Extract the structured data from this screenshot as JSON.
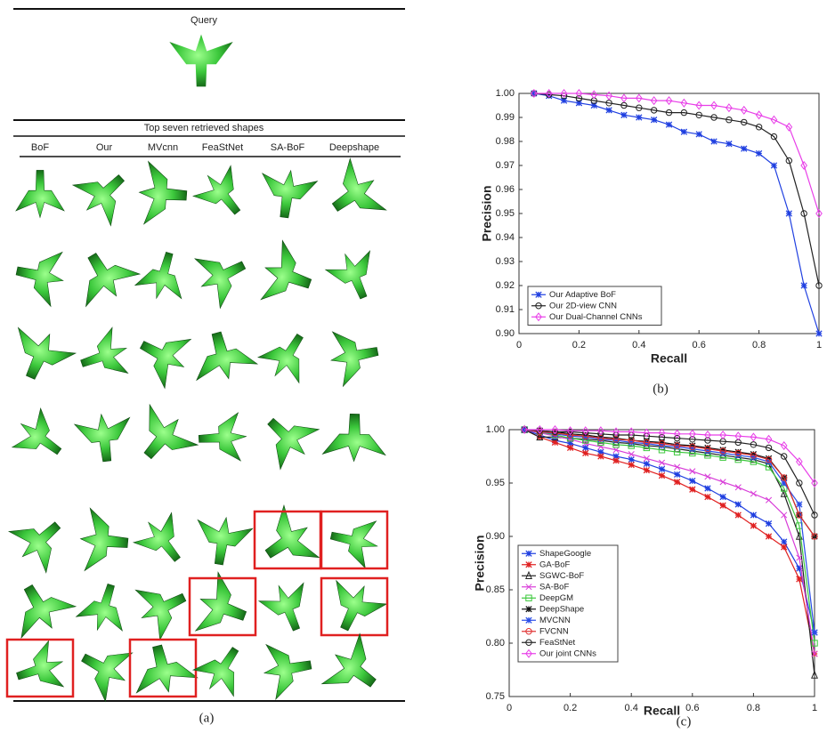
{
  "panel_a": {
    "query_label": "Query",
    "retrieved_label": "Top seven retrieved shapes",
    "methods": [
      "BoF",
      "Our",
      "MVcnn",
      "FeaStNet",
      "SA-BoF",
      "Deepshape"
    ],
    "caption": "(a)"
  },
  "chart_data": [
    {
      "type": "line",
      "caption": "(b)",
      "xlabel": "Recall",
      "ylabel": "Precision",
      "legend": "lower left",
      "xlim": [
        0,
        1
      ],
      "xticks": [
        0,
        0.2,
        0.4,
        0.6,
        0.8,
        1
      ],
      "ylim": [
        0.9,
        1.0
      ],
      "yticks": [
        {
          "value": 0.9,
          "label": "0.90"
        },
        0.91,
        0.92,
        0.93,
        0.94,
        0.95,
        0.96,
        0.97,
        0.98,
        0.99,
        {
          "value": 1.0,
          "label": "1.00"
        }
      ],
      "x": [
        0.05,
        0.1,
        0.15,
        0.2,
        0.25,
        0.3,
        0.35,
        0.4,
        0.45,
        0.5,
        0.55,
        0.6,
        0.65,
        0.7,
        0.75,
        0.8,
        0.85,
        0.9,
        0.95,
        1
      ],
      "series": [
        {
          "name": "Our Adaptive BoF",
          "color": "#1f3fe0",
          "marker": "star",
          "values": [
            1.0,
            0.999,
            0.997,
            0.996,
            0.995,
            0.993,
            0.991,
            0.99,
            0.989,
            0.987,
            0.984,
            0.983,
            0.98,
            0.979,
            0.977,
            0.975,
            0.97,
            0.95,
            0.92,
            0.9
          ]
        },
        {
          "name": "Our 2D-view CNN",
          "color": "#222222",
          "marker": "circle",
          "values": [
            1.0,
            0.9995,
            0.999,
            0.998,
            0.997,
            0.996,
            0.995,
            0.994,
            0.993,
            0.992,
            0.992,
            0.991,
            0.99,
            0.989,
            0.988,
            0.986,
            0.982,
            0.972,
            0.95,
            0.92
          ]
        },
        {
          "name": "Our Dual-Channel CNNs",
          "color": "#e83ee8",
          "marker": "diamond",
          "values": [
            1.0,
            1.0,
            1.0,
            1.0,
            0.9995,
            0.999,
            0.998,
            0.998,
            0.997,
            0.997,
            0.996,
            0.995,
            0.995,
            0.994,
            0.993,
            0.991,
            0.989,
            0.986,
            0.97,
            0.95
          ]
        }
      ]
    },
    {
      "type": "line",
      "caption": "(c)",
      "xlabel": "Recall",
      "ylabel": "Precision",
      "legend": "lower left",
      "xlim": [
        0,
        1
      ],
      "xticks": [
        0,
        0.2,
        0.4,
        0.6,
        0.8,
        1
      ],
      "ylim": [
        0.75,
        1.0
      ],
      "yticks": [
        0.75,
        {
          "value": 0.8,
          "label": "0.80"
        },
        0.85,
        {
          "value": 0.9,
          "label": "0.90"
        },
        0.95,
        {
          "value": 1.0,
          "label": "1.00"
        }
      ],
      "x": [
        0.05,
        0.1,
        0.15,
        0.2,
        0.25,
        0.3,
        0.35,
        0.4,
        0.45,
        0.5,
        0.55,
        0.6,
        0.65,
        0.7,
        0.75,
        0.8,
        0.85,
        0.9,
        0.95,
        1
      ],
      "series": [
        {
          "name": "ShapeGoogle",
          "color": "#1f3fe0",
          "marker": "star",
          "values": [
            1.0,
            0.995,
            0.99,
            0.987,
            0.983,
            0.979,
            0.975,
            0.972,
            0.968,
            0.963,
            0.958,
            0.952,
            0.945,
            0.937,
            0.93,
            0.92,
            0.912,
            0.895,
            0.87,
            0.81
          ]
        },
        {
          "name": "GA-BoF",
          "color": "#e02020",
          "marker": "star",
          "values": [
            1.0,
            0.993,
            0.988,
            0.983,
            0.978,
            0.975,
            0.971,
            0.967,
            0.962,
            0.957,
            0.951,
            0.944,
            0.937,
            0.929,
            0.92,
            0.91,
            0.9,
            0.89,
            0.86,
            0.79
          ]
        },
        {
          "name": "SGWC-BoF",
          "color": "#222222",
          "marker": "triangle",
          "values": [
            1.0,
            0.993,
            0.993,
            0.992,
            0.991,
            0.99,
            0.988,
            0.987,
            0.985,
            0.984,
            0.982,
            0.98,
            0.978,
            0.976,
            0.974,
            0.972,
            0.968,
            0.94,
            0.9,
            0.77
          ]
        },
        {
          "name": "SA-BoF",
          "color": "#d83cd8",
          "marker": "cross",
          "values": [
            1.0,
            0.997,
            0.994,
            0.991,
            0.987,
            0.984,
            0.981,
            0.977,
            0.973,
            0.969,
            0.965,
            0.961,
            0.956,
            0.951,
            0.946,
            0.94,
            0.934,
            0.92,
            0.88,
            0.79
          ]
        },
        {
          "name": "DeepGM",
          "color": "#3cc83c",
          "marker": "square",
          "values": [
            1.0,
            0.998,
            0.995,
            0.992,
            0.99,
            0.988,
            0.986,
            0.985,
            0.983,
            0.981,
            0.979,
            0.978,
            0.976,
            0.974,
            0.972,
            0.97,
            0.965,
            0.945,
            0.91,
            0.8
          ]
        },
        {
          "name": "DeepShape",
          "color": "#111111",
          "marker": "star",
          "values": [
            1.0,
            0.999,
            0.998,
            0.996,
            0.995,
            0.993,
            0.992,
            0.99,
            0.989,
            0.988,
            0.986,
            0.985,
            0.983,
            0.981,
            0.979,
            0.977,
            0.973,
            0.955,
            0.92,
            0.9
          ]
        },
        {
          "name": "MVCNN",
          "color": "#2a4de8",
          "marker": "asterisk",
          "values": [
            1.0,
            0.998,
            0.996,
            0.994,
            0.993,
            0.991,
            0.99,
            0.988,
            0.987,
            0.985,
            0.984,
            0.982,
            0.98,
            0.978,
            0.976,
            0.974,
            0.97,
            0.95,
            0.93,
            0.81
          ]
        },
        {
          "name": "FVCNN",
          "color": "#e03030",
          "marker": "circle",
          "values": [
            1.0,
            0.998,
            0.997,
            0.995,
            0.994,
            0.992,
            0.991,
            0.99,
            0.988,
            0.987,
            0.985,
            0.984,
            0.982,
            0.98,
            0.978,
            0.976,
            0.972,
            0.955,
            0.92,
            0.9
          ]
        },
        {
          "name": "FeaStNet",
          "color": "#222222",
          "marker": "circle",
          "values": [
            1.0,
            0.999,
            0.998,
            0.998,
            0.997,
            0.996,
            0.995,
            0.995,
            0.994,
            0.993,
            0.992,
            0.991,
            0.99,
            0.989,
            0.988,
            0.986,
            0.983,
            0.975,
            0.95,
            0.92
          ]
        },
        {
          "name": "Our joint CNNs",
          "color": "#e83ee8",
          "marker": "diamond",
          "values": [
            1.0,
            1.0,
            1.0,
            0.999,
            0.999,
            0.999,
            0.998,
            0.998,
            0.997,
            0.997,
            0.996,
            0.996,
            0.995,
            0.995,
            0.994,
            0.993,
            0.991,
            0.985,
            0.97,
            0.95
          ]
        }
      ]
    }
  ]
}
